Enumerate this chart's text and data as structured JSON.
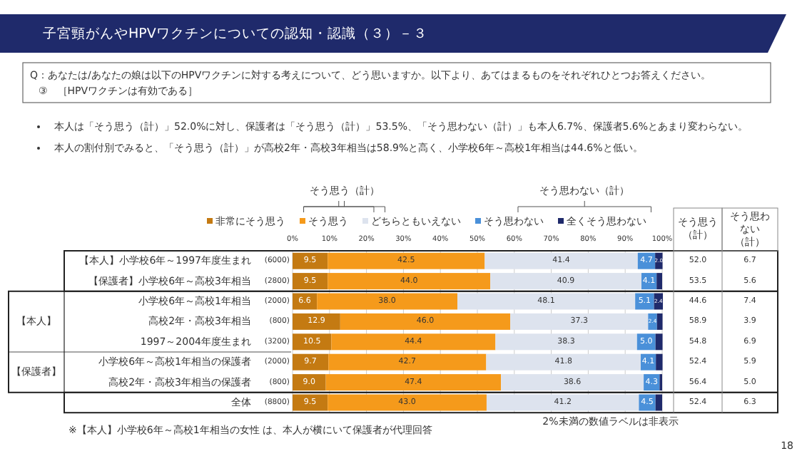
{
  "chart_data": {
    "type": "bar",
    "orientation": "horizontal",
    "stacked": true,
    "title": "子宮頸がんやHPVワクチンについての認知・認識（３）－３",
    "subtitle": "Q：あなたは/あなたの娘は以下のHPVワクチンに対する考えについて、どう思いますか。以下より、あてはまるものをそれぞれひとつお答えください。",
    "categories": [
      "【本人】小学校6年～1997年度生まれ (6000)",
      "【保護者】小学校6年～高校3年相当 (2800)",
      "小学校6年～高校1年相当 (2000)",
      "高校2年・高校3年相当 (800)",
      "1997～2004年度生まれ (3200)",
      "小学校6年～高校1年相当の保護者 (2000)",
      "高校2年・高校3年相当の保護者 (800)",
      "全体 (8800)"
    ],
    "series": [
      {
        "name": "非常にそう思う",
        "color": "#c47a12",
        "values": [
          9.5,
          9.5,
          6.6,
          12.9,
          10.5,
          9.7,
          9.0,
          9.5
        ],
        "value_labels": [
          "9.5",
          "9.5",
          "6.6",
          "12.9",
          "10.5",
          "9.7",
          "9.0",
          "9.5"
        ]
      },
      {
        "name": "そう思う",
        "color": "#f59a1b",
        "values": [
          42.5,
          44.0,
          38.0,
          46.0,
          44.4,
          42.7,
          47.4,
          43.0
        ],
        "value_labels": [
          "42.5",
          "44.0",
          "38.0",
          "46.0",
          "44.4",
          "42.7",
          "47.4",
          "43.0"
        ]
      },
      {
        "name": "どちらともいえない",
        "color": "#dde3ee",
        "values": [
          41.4,
          40.9,
          48.1,
          37.3,
          38.3,
          41.8,
          38.6,
          41.2
        ],
        "value_labels": [
          "41.4",
          "40.9",
          "48.1",
          "37.3",
          "38.3",
          "41.8",
          "38.6",
          "41.2"
        ]
      },
      {
        "name": "そう思わない",
        "color": "#4a90d9",
        "values": [
          4.7,
          4.1,
          5.1,
          2.4,
          5.0,
          4.1,
          4.3,
          4.5
        ],
        "value_labels": [
          "4.7",
          "4.1",
          "5.1",
          "2.4",
          "5.0",
          "4.1",
          "4.3",
          "4.5"
        ]
      },
      {
        "name": "全くそう思わない",
        "color": "#1f2a6b",
        "values": [
          2.0,
          1.5,
          2.4,
          1.5,
          1.9,
          1.8,
          0.7,
          1.8
        ],
        "value_labels": [
          "2.0",
          null,
          "2.4",
          null,
          null,
          null,
          null,
          null
        ]
      }
    ],
    "xlim": [
      0,
      100
    ],
    "xticks": [
      {
        "value": 0,
        "label": "0%"
      },
      {
        "value": 10,
        "label": "10%"
      },
      {
        "value": 20,
        "label": "20%"
      },
      {
        "value": 30,
        "label": "30%"
      },
      {
        "value": 40,
        "label": "40%"
      },
      {
        "value": 50,
        "label": "50%"
      },
      {
        "value": 60,
        "label": "60%"
      },
      {
        "value": 70,
        "label": "70%"
      },
      {
        "value": 80,
        "label": "80%"
      },
      {
        "value": 90,
        "label": "90%"
      },
      {
        "value": 100,
        "label": "100%"
      }
    ],
    "grid": "x",
    "legend": "top",
    "totals": [
      [
        "52.0",
        "6.7"
      ],
      [
        "53.5",
        "5.6"
      ],
      [
        "44.6",
        "7.4"
      ],
      [
        "58.9",
        "3.9"
      ],
      [
        "54.8",
        "6.9"
      ],
      [
        "52.4",
        "5.9"
      ],
      [
        "56.4",
        "5.0"
      ],
      [
        "52.4",
        "6.3"
      ]
    ],
    "annotations": [
      "③　［HPVワクチンは有効である］",
      "本人は「そう思う（計）」52.0%に対し、保護者は「そう思う（計）」53.5%、「そう思わない（計）」も本人6.7%、保護者5.6%とあまり変わらない。",
      "本人の割付別でみると、「そう思う（計）」が高校2年・高校3年相当は58.9%と高く、小学校6年～高校1年相当は44.6%と低い。",
      "そう思う（計）",
      "そう思わない（計）",
      "【本人】",
      "【保護者】",
      "そう思う（計）",
      "そう思わない（計）",
      "2%未満の数値ラベルは非表示",
      "※【本人】小学校6年～高校1年相当の女性 は、本人が横にいて保護者が代理回答",
      "18"
    ]
  }
}
